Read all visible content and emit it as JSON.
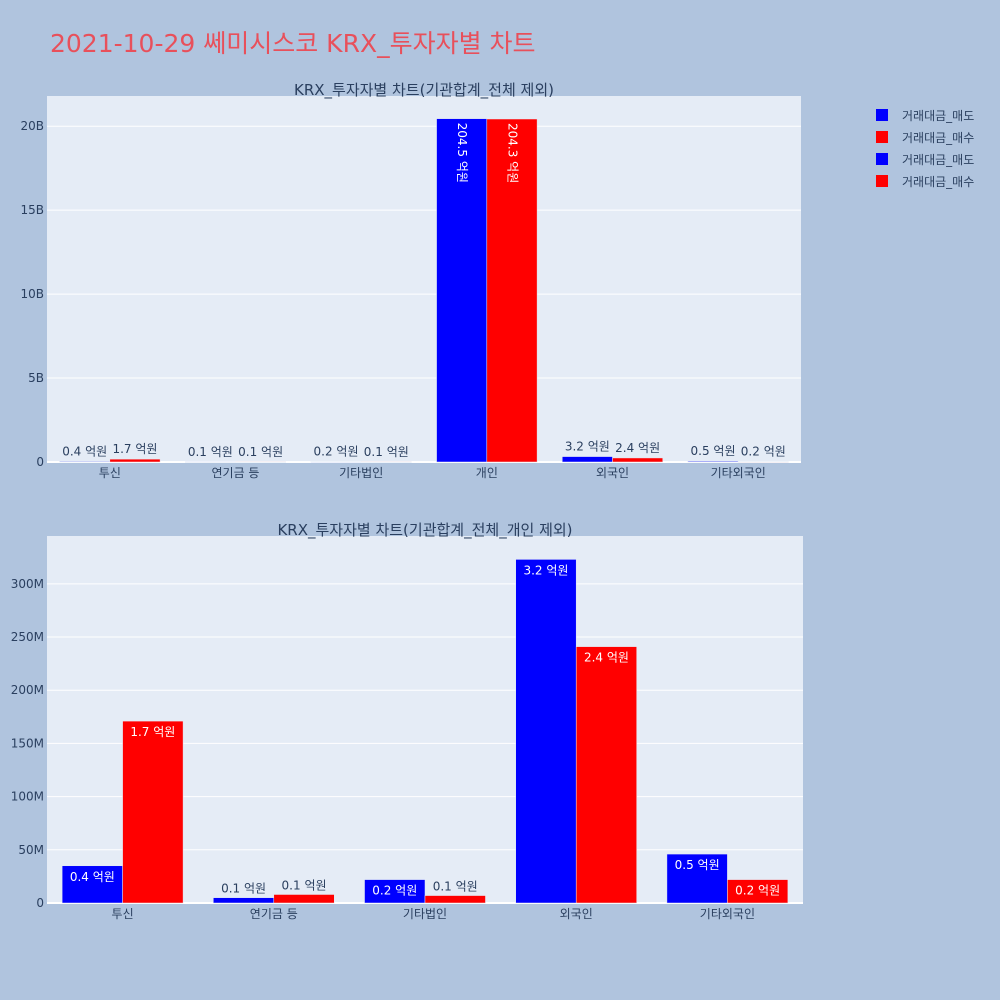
{
  "title": "2021-10-29 쎄미시스코 KRX_투자자별 차트",
  "colors": {
    "sell": "#0000ff",
    "buy": "#ff0000",
    "plot_bg": "#e5ecf6",
    "page_bg": "#b0c4de",
    "text": "#2a3f5f"
  },
  "legend": [
    {
      "label": "거래대금_매도",
      "color": "#0000ff"
    },
    {
      "label": "거래대금_매수",
      "color": "#ff0000"
    },
    {
      "label": "거래대금_매도",
      "color": "#0000ff"
    },
    {
      "label": "거래대금_매수",
      "color": "#ff0000"
    }
  ],
  "chart_data": [
    {
      "type": "bar",
      "title": "KRX_투자자별 차트(기관합계_전체 제외)",
      "categories": [
        "투신",
        "연기금 등",
        "기타법인",
        "개인",
        "외국인",
        "기타외국인"
      ],
      "ylim": [
        0,
        21800000000
      ],
      "yticks": [
        {
          "value": 0,
          "label": "0"
        },
        {
          "value": 5000000000,
          "label": "5B"
        },
        {
          "value": 10000000000,
          "label": "10B"
        },
        {
          "value": 15000000000,
          "label": "15B"
        },
        {
          "value": 20000000000,
          "label": "20B"
        }
      ],
      "series": [
        {
          "name": "거래대금_매도",
          "color": "#0000ff",
          "values": [
            35000000,
            5000000,
            22000000,
            20450000000,
            323000000,
            46000000
          ],
          "labels": [
            "0.4 억원",
            "0.1 억원",
            "0.2 억원",
            "204.5 억원",
            "3.2 억원",
            "0.5 억원"
          ]
        },
        {
          "name": "거래대금_매수",
          "color": "#ff0000",
          "values": [
            171000000,
            8000000,
            7000000,
            20430000000,
            241000000,
            22000000
          ],
          "labels": [
            "1.7 억원",
            "0.1 억원",
            "0.1 억원",
            "204.3 억원",
            "2.4 억원",
            "0.2 억원"
          ]
        }
      ],
      "grid": true
    },
    {
      "type": "bar",
      "title": "KRX_투자자별 차트(기관합계_전체_개인 제외)",
      "categories": [
        "투신",
        "연기금 등",
        "기타법인",
        "외국인",
        "기타외국인"
      ],
      "ylim": [
        0,
        345000000
      ],
      "yticks": [
        {
          "value": 0,
          "label": "0"
        },
        {
          "value": 50000000,
          "label": "50M"
        },
        {
          "value": 100000000,
          "label": "100M"
        },
        {
          "value": 150000000,
          "label": "150M"
        },
        {
          "value": 200000000,
          "label": "200M"
        },
        {
          "value": 250000000,
          "label": "250M"
        },
        {
          "value": 300000000,
          "label": "300M"
        }
      ],
      "series": [
        {
          "name": "거래대금_매도",
          "color": "#0000ff",
          "values": [
            35000000,
            5000000,
            22000000,
            323000000,
            46000000
          ],
          "labels": [
            "0.4 억원",
            "0.1 억원",
            "0.2 억원",
            "3.2 억원",
            "0.5 억원"
          ]
        },
        {
          "name": "거래대금_매수",
          "color": "#ff0000",
          "values": [
            171000000,
            8000000,
            7000000,
            241000000,
            22000000
          ],
          "labels": [
            "1.7 억원",
            "0.1 억원",
            "0.1 억원",
            "2.4 억원",
            "0.2 억원"
          ]
        }
      ],
      "grid": true
    }
  ]
}
